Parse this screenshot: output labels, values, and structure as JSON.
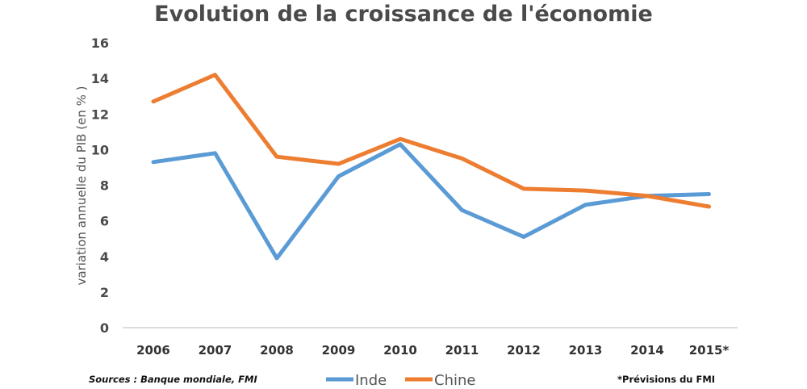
{
  "chart_data": {
    "type": "line",
    "title": "Evolution de la croissance de l'économie",
    "xlabel": "",
    "ylabel": "variation annuelle du PIB (en % )",
    "categories": [
      "2006",
      "2007",
      "2008",
      "2009",
      "2010",
      "2011",
      "2012",
      "2013",
      "2014",
      "2015*"
    ],
    "ylim": [
      0,
      16
    ],
    "yticks": [
      0,
      2,
      4,
      6,
      8,
      10,
      12,
      14,
      16
    ],
    "grid": false,
    "legend_position": "bottom",
    "series": [
      {
        "name": "Inde",
        "color": "#5b9bd5",
        "values": [
          9.3,
          9.8,
          3.9,
          8.5,
          10.3,
          6.6,
          5.1,
          6.9,
          7.4,
          7.5
        ]
      },
      {
        "name": "Chine",
        "color": "#ed7d31",
        "values": [
          12.7,
          14.2,
          9.6,
          9.2,
          10.6,
          9.5,
          7.8,
          7.7,
          7.4,
          6.8
        ]
      }
    ],
    "source_note": "Sources : Banque mondiale, FMI",
    "forecast_note": "*Prévisions du FMI"
  }
}
